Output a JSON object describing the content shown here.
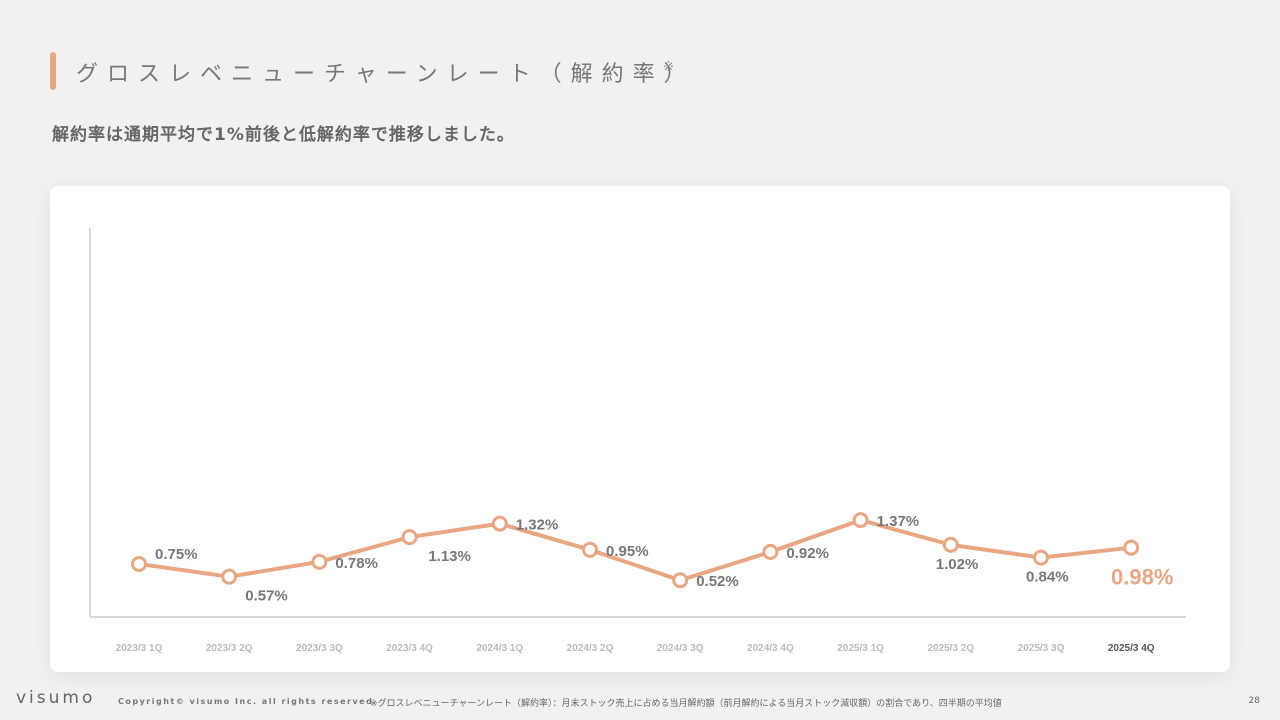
{
  "header": {
    "title": "グロスレベニューチャーンレート（解約率）",
    "title_note": "※",
    "subtitle": "解約率は通期平均で1%前後と低解約率で推移しました。"
  },
  "footer": {
    "logo": "visumo",
    "copyright": "Copyright© visumo Inc. all rights reserved",
    "note": "※グロスレベニューチャーンレート（解約率）：月末ストック売上に占める当月解約額（前月解約による当月ストック減収額）の割合であり、四半期の平均値",
    "page_number": "28"
  },
  "colors": {
    "accent": "#e8a683",
    "line": "#e8a683",
    "label": "#777777",
    "highlight_label": "#e8a683",
    "axis": "#cccccc"
  },
  "chart_data": {
    "type": "line",
    "categories": [
      "2023/3 1Q",
      "2023/3 2Q",
      "2023/3 3Q",
      "2023/3 4Q",
      "2024/3 1Q",
      "2024/3 2Q",
      "2024/3 3Q",
      "2024/3 4Q",
      "2025/3 1Q",
      "2025/3 2Q",
      "2025/3 3Q",
      "2025/3 4Q"
    ],
    "values": [
      0.75,
      0.57,
      0.78,
      1.13,
      1.32,
      0.95,
      0.52,
      0.92,
      1.37,
      1.02,
      0.84,
      0.98
    ],
    "data_labels": [
      "0.75%",
      "0.57%",
      "0.78%",
      "1.13%",
      "1.32%",
      "0.95%",
      "0.52%",
      "0.92%",
      "1.37%",
      "1.02%",
      "0.84%",
      "0.98%"
    ],
    "label_positions": [
      "above",
      "below",
      "right",
      "below",
      "right",
      "right",
      "right",
      "right",
      "right",
      "below",
      "below",
      "below"
    ],
    "highlight_index": 11,
    "ylim": [
      0,
      5.5
    ],
    "grid": false
  }
}
